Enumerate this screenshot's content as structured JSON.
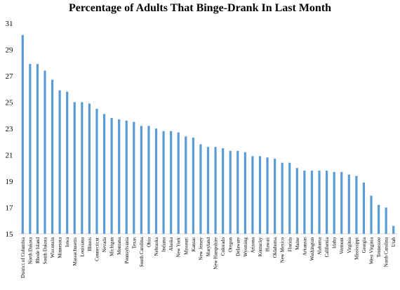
{
  "chart_data": {
    "type": "bar",
    "title": "Percentage of Adults That Binge-Drank In Last Month",
    "xlabel": "",
    "ylabel": "",
    "ylim": [
      15,
      31
    ],
    "yticks": [
      15,
      17,
      19,
      21,
      23,
      25,
      27,
      29,
      31
    ],
    "grid": false,
    "bar_color": "#5b9bd5",
    "categories": [
      "District of Columbia",
      "North Dakota",
      "Rhode Island",
      "South Dakota",
      "Wisconsin",
      "Minnesota",
      "Iowa",
      "Massachusetts",
      "Louisiana",
      "Illinois",
      "Connecticut",
      "Nevada",
      "Michigan",
      "Montana",
      "Pennsylvania",
      "Texas",
      "South Carolina",
      "Ohio",
      "Nebraska",
      "Indiana",
      "Alaska",
      "New York",
      "Missouri",
      "Kansas",
      "New Jersey",
      "Maryland",
      "New Hampshire",
      "Colorado",
      "Oregon",
      "Delaware",
      "Wyoming",
      "Arizona",
      "Kentucky",
      "Hawaii",
      "Oklahoma",
      "New Mexico",
      "Florida",
      "Maine",
      "Arkansas",
      "Washington",
      "Alabama",
      "California",
      "Idaho",
      "Vermont",
      "Virginia",
      "Mississippi",
      "Georgia",
      "West Virginia",
      "Tennessee",
      "North Carolina",
      "Utah"
    ],
    "values": [
      30.1,
      27.9,
      27.9,
      27.4,
      26.7,
      25.9,
      25.8,
      25.0,
      25.0,
      24.9,
      24.5,
      24.1,
      23.8,
      23.7,
      23.6,
      23.5,
      23.2,
      23.2,
      23.0,
      22.8,
      22.8,
      22.7,
      22.4,
      22.3,
      21.8,
      21.6,
      21.6,
      21.5,
      21.3,
      21.3,
      21.2,
      20.9,
      20.9,
      20.8,
      20.7,
      20.4,
      20.4,
      20.0,
      19.8,
      19.8,
      19.8,
      19.8,
      19.7,
      19.7,
      19.5,
      19.4,
      18.9,
      17.9,
      17.2,
      17.0,
      15.6
    ]
  }
}
